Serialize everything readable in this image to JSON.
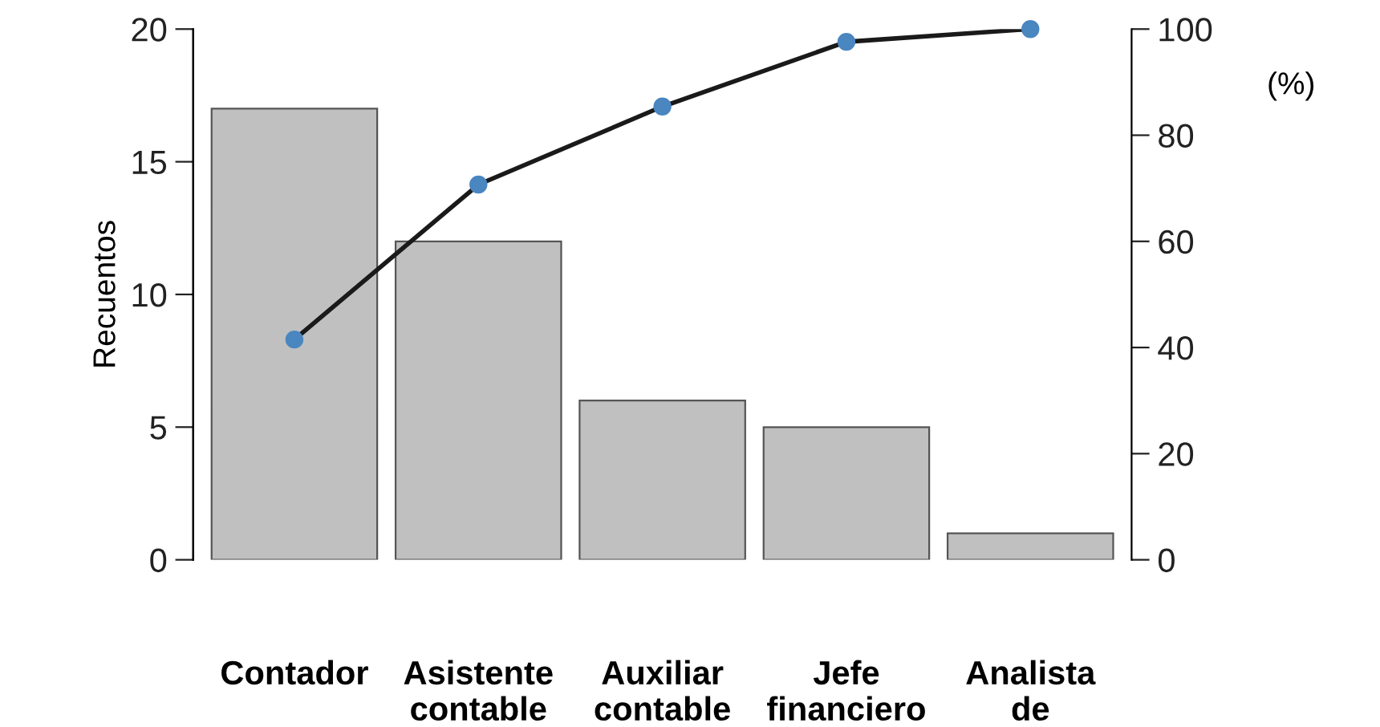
{
  "chart_data": {
    "type": "bar",
    "ylabel": "Recuentos",
    "y2label": "(%)",
    "categories": [
      "Contador",
      "Asistente\ncontable",
      "Auxiliar\ncontable",
      "Jefe\nfinanciero",
      "Analista\nde"
    ],
    "series": [
      {
        "color": "#c0c0c0",
        "values": [
          17,
          12,
          6,
          5,
          1
        ]
      },
      {
        "type": "line",
        "axis": "y2",
        "color": "#1a1a1a",
        "colors": [
          "#4a86c0",
          "#4a86c0",
          "#4a86c0",
          "#4a86c0",
          "#4a86c0"
        ],
        "values": [
          41.5,
          70.7,
          85.4,
          97.6,
          100
        ]
      }
    ],
    "ylim": [
      0,
      20
    ],
    "yticks": [
      0,
      5,
      10,
      15,
      20
    ],
    "y2lim": [
      0,
      100
    ],
    "y2ticks": [
      0,
      20,
      40,
      60,
      80,
      100
    ],
    "marker": "circle",
    "line_style": "solid",
    "grid": false
  }
}
